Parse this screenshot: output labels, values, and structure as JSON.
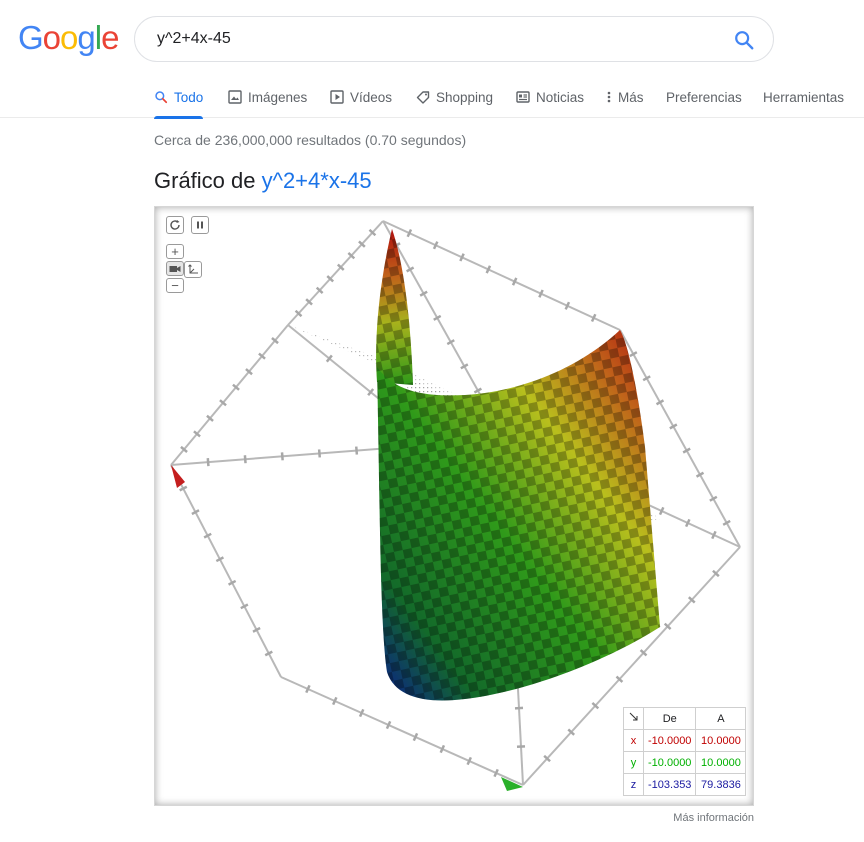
{
  "logo": {
    "letters": [
      "G",
      "o",
      "o",
      "g",
      "l",
      "e"
    ]
  },
  "search": {
    "query": "y^2+4x-45"
  },
  "tabs": [
    {
      "label": "Todo",
      "icon": "search-icon"
    },
    {
      "label": "Imágenes",
      "icon": "image-icon"
    },
    {
      "label": "Vídeos",
      "icon": "video-icon"
    },
    {
      "label": "Shopping",
      "icon": "tag-icon"
    },
    {
      "label": "Noticias",
      "icon": "news-icon"
    },
    {
      "label": "Más",
      "icon": "more-vert-icon"
    },
    {
      "label": "Preferencias"
    },
    {
      "label": "Herramientas"
    }
  ],
  "stats": "Cerca de 236,000,000 resultados (0.70 segundos)",
  "graph": {
    "title_prefix": "Gráfico de",
    "function": "y^2+4*x-45",
    "controls": {
      "zoom_in": "+",
      "zoom_out": "−"
    },
    "range_header": {
      "from": "De",
      "to": "A"
    },
    "ranges": [
      {
        "axis": "x",
        "from": "-10.0000",
        "to": "10.0000"
      },
      {
        "axis": "y",
        "from": "-10.0000",
        "to": "10.0000"
      },
      {
        "axis": "z",
        "from": "-103.353",
        "to": "79.3836"
      }
    ]
  },
  "more_info": "Más información",
  "colors": {
    "accent": "#1a73e8",
    "x_axis": "#c00000",
    "y_axis": "#00b000",
    "z_axis": "#1a1aa0"
  }
}
